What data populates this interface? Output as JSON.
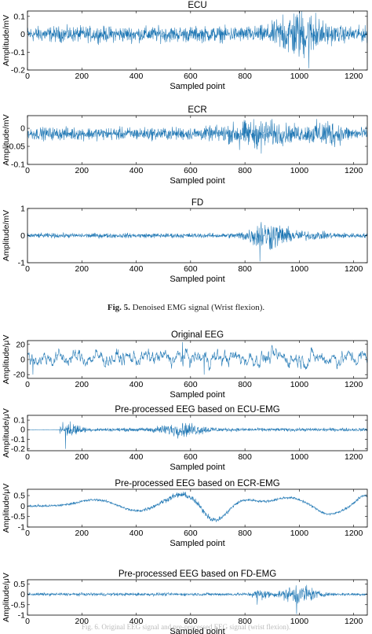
{
  "figure5": {
    "label": "Fig. 5.",
    "caption": "Denoised EMG signal (Wrist flexion)."
  },
  "figure6": {
    "caption_partial": "Fig. 6. Original EEG signal and pre-processed EEG signal (wrist flexion)."
  },
  "chart_data": [
    {
      "type": "line",
      "title": "ECU",
      "xlabel": "Sampled point",
      "ylabel": "Amplitude/mV",
      "xlim": [
        0,
        1250
      ],
      "ylim": [
        -0.2,
        0.13
      ],
      "xticks": [
        0,
        200,
        400,
        600,
        800,
        1000,
        1200
      ],
      "yticks": [
        -0.2,
        -0.1,
        0,
        0.1
      ],
      "ytick_labels": [
        "-0.2",
        "-0.1",
        "0",
        "0.1"
      ],
      "color": "#1f77b4",
      "signal": {
        "n": 1250,
        "kind": "noise",
        "amp": 0.03,
        "mean": 0.0,
        "bursts": [
          {
            "c": 1000,
            "w": 80,
            "a": 0.07
          }
        ],
        "spikes": [
          {
            "x": 1035,
            "v": -0.19
          },
          {
            "x": 1060,
            "v": 0.12
          },
          {
            "x": 940,
            "v": 0.11
          }
        ]
      }
    },
    {
      "type": "line",
      "title": "ECR",
      "xlabel": "Sampled point",
      "ylabel": "Amplitude/mV",
      "xlim": [
        0,
        1250
      ],
      "ylim": [
        -0.1,
        0.035
      ],
      "xticks": [
        0,
        200,
        400,
        600,
        800,
        1000,
        1200
      ],
      "yticks": [
        -0.1,
        -0.05,
        0
      ],
      "ytick_labels": [
        "-0.1",
        "-0.05",
        "0"
      ],
      "color": "#1f77b4",
      "signal": {
        "n": 1250,
        "kind": "noise",
        "amp": 0.012,
        "mean": -0.015,
        "bursts": [
          {
            "c": 850,
            "w": 120,
            "a": 0.015
          },
          {
            "c": 1100,
            "w": 60,
            "a": 0.015
          }
        ],
        "spikes": [
          {
            "x": 860,
            "v": -0.07
          },
          {
            "x": 780,
            "v": -0.06
          },
          {
            "x": 1105,
            "v": 0.02
          }
        ]
      }
    },
    {
      "type": "line",
      "title": "FD",
      "xlabel": "Sampled point",
      "ylabel": "Amplitude/mV",
      "xlim": [
        0,
        1250
      ],
      "ylim": [
        -1,
        1
      ],
      "xticks": [
        0,
        200,
        400,
        600,
        800,
        1000,
        1200
      ],
      "yticks": [
        -1,
        0,
        1
      ],
      "ytick_labels": [
        "-1",
        "0",
        "1"
      ],
      "color": "#1f77b4",
      "signal": {
        "n": 1250,
        "kind": "noise",
        "amp": 0.06,
        "mean": 0.0,
        "bursts": [
          {
            "c": 880,
            "w": 70,
            "a": 0.3
          },
          {
            "c": 1000,
            "w": 120,
            "a": 0.06
          }
        ],
        "spikes": [
          {
            "x": 855,
            "v": -0.95
          },
          {
            "x": 860,
            "v": 0.5
          }
        ]
      }
    },
    {
      "type": "line",
      "title": "Original EEG",
      "xlabel": "Sampled point",
      "ylabel": "Amplitude/μV",
      "xlim": [
        0,
        1250
      ],
      "ylim": [
        -25,
        25
      ],
      "xticks": [
        0,
        200,
        400,
        600,
        800,
        1000,
        1200
      ],
      "yticks": [
        -20,
        0,
        20
      ],
      "ytick_labels": [
        "-20",
        "0",
        "20"
      ],
      "color": "#1f77b4",
      "signal": {
        "n": 1250,
        "kind": "smooth",
        "amp": 8,
        "mean": 2,
        "bursts": [],
        "spikes": [
          {
            "x": 570,
            "v": 23
          },
          {
            "x": 650,
            "v": -20
          },
          {
            "x": 20,
            "v": -20
          }
        ]
      }
    },
    {
      "type": "line",
      "title": "Pre-processed EEG based on ECU-EMG",
      "xlabel": "Sampled point",
      "ylabel": "Amplitude/μV",
      "xlim": [
        0,
        1250
      ],
      "ylim": [
        -0.22,
        0.15
      ],
      "xticks": [
        0,
        200,
        400,
        600,
        800,
        1000,
        1200
      ],
      "yticks": [
        -0.2,
        -0.1,
        0,
        0.1
      ],
      "ytick_labels": [
        "-0.2",
        "-0.1",
        "0",
        "0.1"
      ],
      "color": "#1f77b4",
      "signal": {
        "n": 1250,
        "kind": "noise",
        "amp": 0.012,
        "mean": 0.0,
        "bursts": [
          {
            "c": 570,
            "w": 90,
            "a": 0.04
          },
          {
            "c": 160,
            "w": 40,
            "a": 0.04
          }
        ],
        "spikes": [
          {
            "x": 140,
            "v": -0.2
          },
          {
            "x": 130,
            "v": 0.08
          }
        ],
        "flat_until": 120
      }
    },
    {
      "type": "line",
      "title": "Pre-processed EEG based on ECR-EMG",
      "xlabel": "Sampled point",
      "ylabel": "Amplitude/μV",
      "xlim": [
        0,
        1250
      ],
      "ylim": [
        -1,
        0.8
      ],
      "xticks": [
        0,
        200,
        400,
        600,
        800,
        1000,
        1200
      ],
      "yticks": [
        -1,
        -0.5,
        0,
        0.5
      ],
      "ytick_labels": [
        "-1",
        "-0.5",
        "0",
        "0.5"
      ],
      "color": "#1f77b4",
      "signal": {
        "n": 1250,
        "kind": "wave",
        "amp": 0.04,
        "mean": 0.0,
        "wave": [
          {
            "c": 250,
            "w": 90,
            "a": 0.3
          },
          {
            "c": 400,
            "w": 70,
            "a": -0.25
          },
          {
            "c": 570,
            "w": 80,
            "a": 0.55
          },
          {
            "c": 690,
            "w": 60,
            "a": -0.75
          },
          {
            "c": 800,
            "w": 70,
            "a": 0.3
          },
          {
            "c": 960,
            "w": 80,
            "a": 0.4
          },
          {
            "c": 1110,
            "w": 60,
            "a": -0.4
          },
          {
            "c": 1240,
            "w": 40,
            "a": 0.5
          }
        ],
        "bursts": [
          {
            "c": 600,
            "w": 150,
            "a": 0.06
          }
        ],
        "spikes": [
          {
            "x": 40,
            "v": 0.1
          }
        ],
        "flat_until": 0
      }
    },
    {
      "type": "line",
      "title": "Pre-processed EEG based on FD-EMG",
      "xlabel": "Sampled point",
      "ylabel": "Amplitude/μV",
      "xlim": [
        0,
        1250
      ],
      "ylim": [
        -1,
        0.7
      ],
      "xticks": [
        0,
        200,
        400,
        600,
        800,
        1000,
        1200
      ],
      "yticks": [
        -1,
        -0.5,
        0,
        0.5
      ],
      "ytick_labels": [
        "-1",
        "-0.5",
        "0",
        "0.5"
      ],
      "color": "#1f77b4",
      "signal": {
        "n": 1250,
        "kind": "noise",
        "amp": 0.05,
        "mean": 0.0,
        "bursts": [
          {
            "c": 1000,
            "w": 60,
            "a": 0.3
          },
          {
            "c": 860,
            "w": 30,
            "a": 0.15
          }
        ],
        "spikes": [
          {
            "x": 990,
            "v": -0.95
          },
          {
            "x": 845,
            "v": -0.5
          }
        ]
      }
    }
  ]
}
